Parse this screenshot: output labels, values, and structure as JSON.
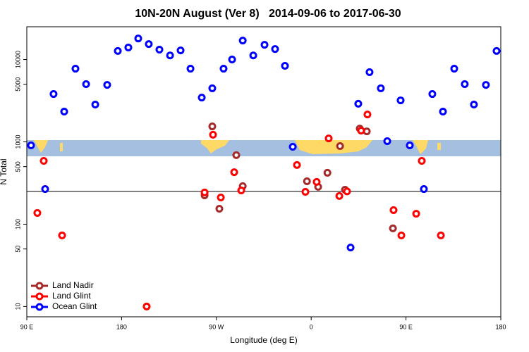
{
  "chart_data": {
    "type": "scatter",
    "title": "10N-20N August (Ver 8)   2014-09-06 to 2017-06-30",
    "x_label": "Longitude (deg E)",
    "y_label": "N Total",
    "xlim": [
      90,
      540
    ],
    "xticks": [
      {
        "value": 90,
        "label": "90 E"
      },
      {
        "value": 180,
        "label": "180"
      },
      {
        "value": 270,
        "label": "90 W"
      },
      {
        "value": 360,
        "label": "0"
      },
      {
        "value": 450,
        "label": "90 E"
      },
      {
        "value": 540,
        "label": "180"
      }
    ],
    "ylim": [
      7.5,
      25000
    ],
    "yticks": [
      10,
      50,
      100,
      500,
      1000,
      5000,
      10000
    ],
    "log_y": true,
    "reference_line": 250,
    "legend": "bottom-left",
    "series": [
      {
        "name": "Land Nadir",
        "color": "#a52a2a",
        "x": [
          258.8,
          266.1,
          272.8,
          288.9,
          295,
          356,
          366.6,
          375.4,
          387.4,
          392.1,
          406.1,
          412.8,
          437.6
        ],
        "values": [
          224,
          1540,
          154,
          689,
          290,
          332,
          284,
          421,
          889,
          262,
          1450,
          1340,
          89
        ]
      },
      {
        "name": "Land Glint",
        "color": "#ff0000",
        "x": [
          100,
          106.1,
          123.5,
          203.8,
          258.8,
          266.8,
          274.2,
          286.9,
          293.6,
          346.5,
          354.5,
          365.2,
          376.6,
          386.7,
          394,
          407.4,
          413.4,
          438.2,
          445.6,
          459.7,
          465,
          483.1
        ],
        "values": [
          137,
          587,
          73,
          10,
          243,
          1220,
          211,
          428,
          257,
          523,
          247,
          326,
          1100,
          220,
          250,
          1370,
          2150,
          148,
          73,
          134,
          587,
          73
        ]
      },
      {
        "name": "Ocean Glint",
        "color": "#0000ff",
        "x": [
          94,
          107.4,
          115.4,
          125.5,
          136.2,
          146.3,
          155,
          166.3,
          176.4,
          186.4,
          195.8,
          205.8,
          215.9,
          226,
          236,
          245.4,
          256.1,
          266.1,
          276.8,
          284.9,
          295,
          305,
          315.7,
          325.7,
          335.1,
          342.5,
          397.4,
          404.7,
          415.4,
          426.1,
          432.2,
          444.9,
          453.6,
          467,
          475,
          485.1,
          495.8,
          505.8,
          514.5,
          525.9,
          536
        ],
        "values": [
          906,
          267,
          3810,
          2330,
          7740,
          5020,
          2840,
          4920,
          12700,
          14000,
          18000,
          15400,
          13200,
          11200,
          12900,
          7740,
          3450,
          4470,
          7740,
          10000,
          17000,
          11200,
          15100,
          13400,
          8380,
          871,
          52,
          2900,
          7020,
          4470,
          1020,
          3190,
          906,
          267,
          3810,
          2330,
          7740,
          5020,
          2840,
          4920,
          12700
        ]
      }
    ]
  }
}
